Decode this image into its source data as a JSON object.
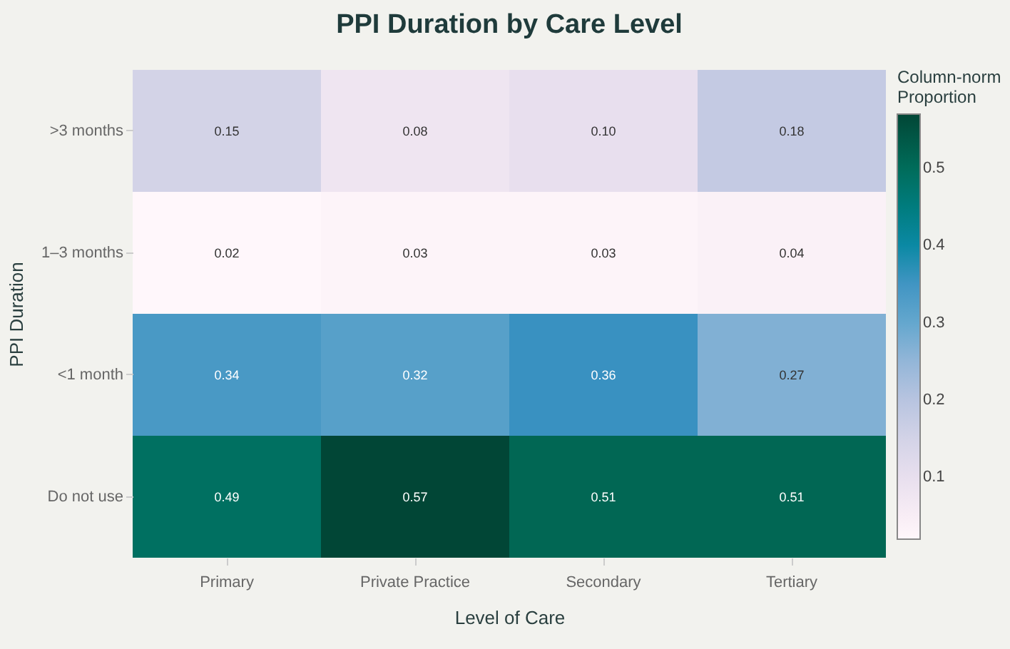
{
  "chart_data": {
    "type": "heatmap",
    "title": "PPI Duration by Care Level",
    "xlabel": "Level of Care",
    "ylabel": "PPI Duration",
    "clabel": "Column-norm Proportion",
    "categories": [
      "Primary",
      "Private Practice",
      "Secondary",
      "Tertiary"
    ],
    "y_categories": [
      ">3 months",
      "1–3 months",
      "<1 month",
      "Do not use"
    ],
    "cells": [
      [
        0.15,
        0.08,
        0.1,
        0.18
      ],
      [
        0.02,
        0.03,
        0.03,
        0.04
      ],
      [
        0.34,
        0.32,
        0.36,
        0.27
      ],
      [
        0.49,
        0.57,
        0.51,
        0.51
      ]
    ],
    "cell_labels": [
      [
        "0.15",
        "0.08",
        "0.10",
        "0.18"
      ],
      [
        "0.02",
        "0.03",
        "0.03",
        "0.04"
      ],
      [
        "0.34",
        "0.32",
        "0.36",
        "0.27"
      ],
      [
        "0.49",
        "0.57",
        "0.51",
        "0.51"
      ]
    ],
    "clim": [
      0.02,
      0.57
    ],
    "cticks": [
      0.1,
      0.2,
      0.3,
      0.4,
      0.5
    ]
  }
}
